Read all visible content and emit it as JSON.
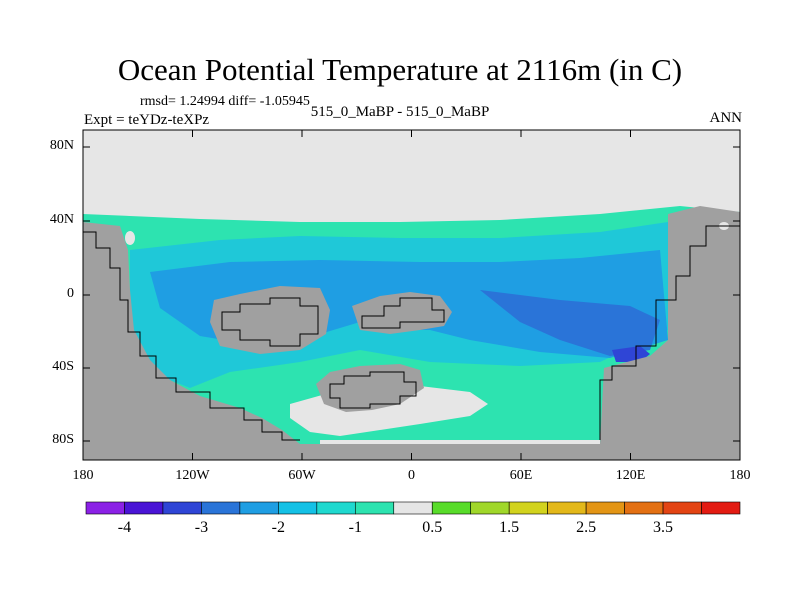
{
  "title": "Ocean Potential Temperature at 2116m (in C)",
  "stats": "rmsd= 1.24994 diff= -1.05945",
  "expt": "Expt = teYDz-teXPz",
  "case": "515_0_MaBP - 515_0_MaBP",
  "season": "ANN",
  "lat_ticks": [
    "80N",
    "40N",
    "0",
    "40S",
    "80S"
  ],
  "lon_ticks": [
    "180",
    "120W",
    "60W",
    "0",
    "60E",
    "120E",
    "180"
  ],
  "colorbar": {
    "colors": [
      "#8b21e6",
      "#4a14d6",
      "#2f45d6",
      "#2a74d8",
      "#1f9ee3",
      "#14c1e6",
      "#1fd9cf",
      "#2de3b0",
      "#e6e6e6",
      "#58dc2a",
      "#a0d72a",
      "#d2d31e",
      "#e3b81a",
      "#e39515",
      "#e37013",
      "#e34413",
      "#e31b12"
    ],
    "labels": [
      "-4",
      "-3",
      "-2",
      "-1",
      "0.5",
      "1.5",
      "2.5",
      "3.5"
    ]
  },
  "palette": {
    "land": "#a0a0a0",
    "missing": "#e6e6e6",
    "ocean_main": "#2de3b0",
    "ocean_mid": "#1fc8d8",
    "ocean_blue": "#1f9ee3",
    "ocean_deep": "#2a74d8",
    "ocean_dark": "#2f45d6"
  }
}
